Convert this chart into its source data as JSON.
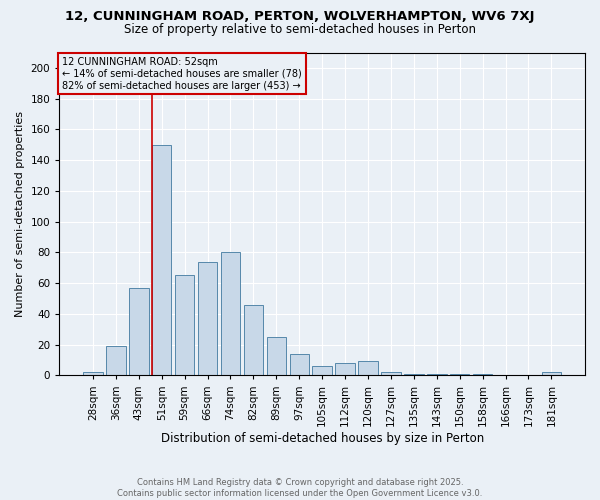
{
  "title_line1": "12, CUNNINGHAM ROAD, PERTON, WOLVERHAMPTON, WV6 7XJ",
  "title_line2": "Size of property relative to semi-detached houses in Perton",
  "xlabel": "Distribution of semi-detached houses by size in Perton",
  "ylabel": "Number of semi-detached properties",
  "categories": [
    "28sqm",
    "36sqm",
    "43sqm",
    "51sqm",
    "59sqm",
    "66sqm",
    "74sqm",
    "82sqm",
    "89sqm",
    "97sqm",
    "105sqm",
    "112sqm",
    "120sqm",
    "127sqm",
    "135sqm",
    "143sqm",
    "150sqm",
    "158sqm",
    "166sqm",
    "173sqm",
    "181sqm"
  ],
  "values": [
    2,
    19,
    57,
    150,
    65,
    74,
    80,
    46,
    25,
    14,
    6,
    8,
    9,
    2,
    1,
    1,
    1,
    1,
    0,
    0,
    2
  ],
  "bar_color": "#c8d8e8",
  "bar_edge_color": "#5588aa",
  "vline_bin_index": 3,
  "vline_color": "#cc0000",
  "annotation_title": "12 CUNNINGHAM ROAD: 52sqm",
  "annotation_line1": "← 14% of semi-detached houses are smaller (78)",
  "annotation_line2": "82% of semi-detached houses are larger (453) →",
  "annotation_box_color": "#cc0000",
  "ylim": [
    0,
    210
  ],
  "yticks": [
    0,
    20,
    40,
    60,
    80,
    100,
    120,
    140,
    160,
    180,
    200
  ],
  "footer_line1": "Contains HM Land Registry data © Crown copyright and database right 2025.",
  "footer_line2": "Contains public sector information licensed under the Open Government Licence v3.0.",
  "background_color": "#eaf0f6",
  "fig_width": 6.0,
  "fig_height": 5.0,
  "dpi": 100
}
